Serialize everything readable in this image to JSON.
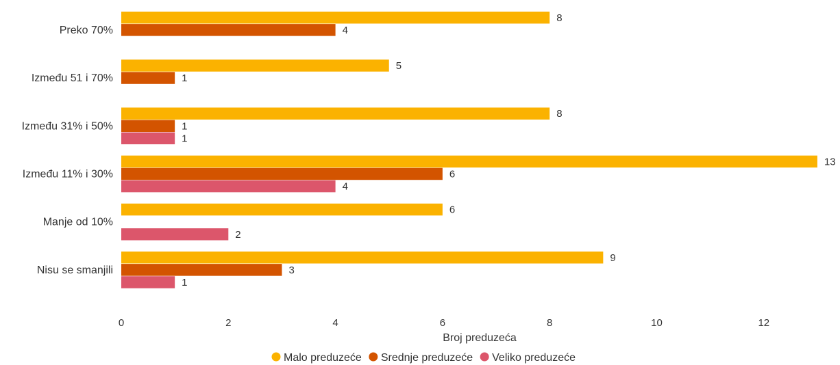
{
  "chart_data": {
    "type": "bar",
    "orientation": "horizontal",
    "categories": [
      "Preko 70%",
      "Između 51 i 70%",
      "Između 31% i 50%",
      "Između 11% i 30%",
      "Manje od 10%",
      "Nisu se smanjili"
    ],
    "series": [
      {
        "name": "Malo preduzeće",
        "color": "#fbb200",
        "values": [
          8,
          5,
          8,
          13,
          6,
          9
        ]
      },
      {
        "name": "Srednje preduzeće",
        "color": "#d35400",
        "values": [
          4,
          1,
          1,
          6,
          null,
          3
        ]
      },
      {
        "name": "Veliko preduzeće",
        "color": "#dc566b",
        "values": [
          null,
          null,
          1,
          4,
          2,
          1
        ]
      }
    ],
    "xlabel": "Broj preduzeća",
    "ylabel": "",
    "xlim": [
      0,
      13
    ],
    "xticks": [
      0,
      2,
      4,
      6,
      8,
      10,
      12
    ],
    "grid": false,
    "legend_position": "bottom"
  }
}
